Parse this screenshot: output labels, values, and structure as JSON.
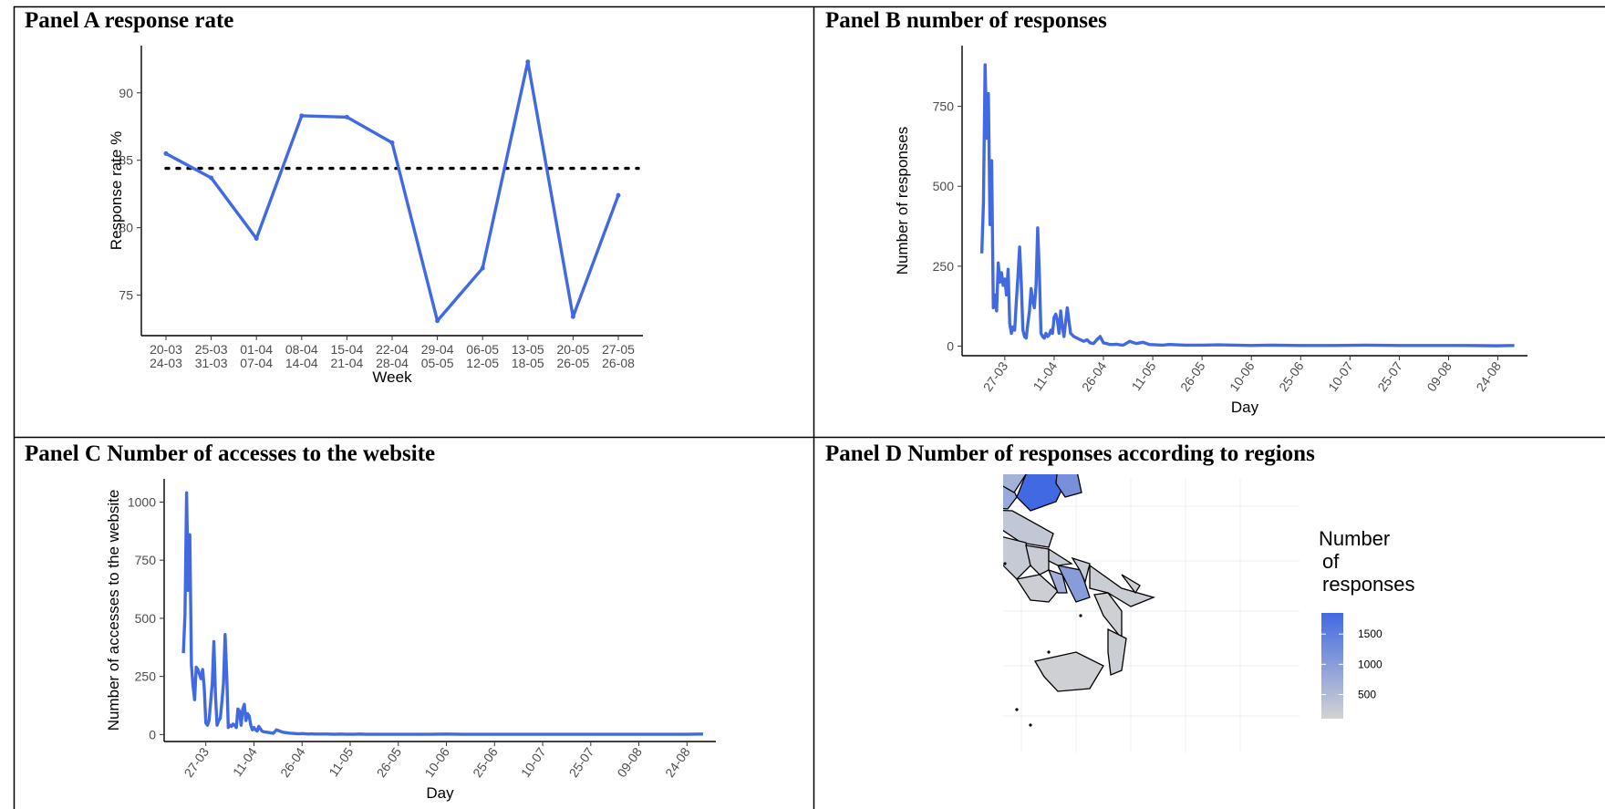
{
  "panels": {
    "a": {
      "title": "Panel A response rate"
    },
    "b": {
      "title": "Panel B number of responses"
    },
    "c": {
      "title": "Panel C Number of accesses to the website"
    },
    "d": {
      "title": "Panel D Number of responses according to regions"
    }
  },
  "colors": {
    "series": "#4169e1",
    "low": "#d3d3d3",
    "high": "#4169e1"
  },
  "chart_data": [
    {
      "id": "a",
      "type": "line",
      "xlabel": "Week",
      "ylabel": "Response rate %",
      "categories": [
        [
          "20-03",
          "24-03"
        ],
        [
          "25-03",
          "31-03"
        ],
        [
          "01-04",
          "07-04"
        ],
        [
          "08-04",
          "14-04"
        ],
        [
          "15-04",
          "21-04"
        ],
        [
          "22-04",
          "28-04"
        ],
        [
          "29-04",
          "05-05"
        ],
        [
          "06-05",
          "12-05"
        ],
        [
          "13-05",
          "18-05"
        ],
        [
          "20-05",
          "26-05"
        ],
        [
          "27-05",
          "26-08"
        ]
      ],
      "values": [
        85.5,
        83.7,
        79.2,
        88.3,
        88.2,
        86.3,
        73.1,
        77.0,
        92.3,
        73.4,
        82.4
      ],
      "reference_line": 84.4,
      "ylim": [
        72,
        93.5
      ],
      "yticks": [
        75,
        80,
        85,
        90
      ],
      "grid": false
    },
    {
      "id": "b",
      "type": "line",
      "xlabel": "Day",
      "ylabel": "Number of responses",
      "xticks": [
        "27-03",
        "11-04",
        "26-04",
        "11-05",
        "26-05",
        "10-06",
        "25-06",
        "10-07",
        "25-07",
        "09-08",
        "24-08"
      ],
      "x": [
        -7,
        -6.5,
        -6,
        -5.5,
        -5,
        -4.5,
        -4,
        -3.5,
        -3,
        -2.5,
        -2,
        -1.5,
        -1,
        -0.5,
        0,
        0.5,
        1,
        1.5,
        2,
        2.5,
        3,
        3.5,
        4,
        4.5,
        5,
        5.5,
        6,
        6.5,
        7,
        7.5,
        8,
        8.5,
        9,
        9.5,
        10,
        10.5,
        11,
        11.5,
        12,
        12.5,
        13,
        13.5,
        14,
        14.5,
        15,
        15.5,
        16,
        16.5,
        17,
        17.5,
        18,
        19,
        20,
        21,
        22,
        23,
        24,
        25,
        26,
        27,
        28,
        29,
        30,
        31,
        32,
        33,
        34,
        35,
        36,
        38,
        40,
        42,
        44,
        46,
        48,
        50,
        55,
        60,
        65,
        70,
        75,
        80,
        90,
        100,
        110,
        120,
        130,
        140,
        150,
        155
      ],
      "y": [
        290,
        450,
        880,
        650,
        790,
        380,
        580,
        120,
        160,
        110,
        260,
        200,
        230,
        190,
        210,
        160,
        240,
        70,
        40,
        60,
        50,
        140,
        220,
        310,
        200,
        50,
        30,
        25,
        70,
        110,
        180,
        140,
        120,
        190,
        370,
        230,
        40,
        30,
        25,
        40,
        30,
        35,
        50,
        40,
        90,
        100,
        80,
        40,
        110,
        60,
        30,
        120,
        40,
        30,
        25,
        20,
        15,
        20,
        10,
        8,
        20,
        30,
        10,
        8,
        5,
        5,
        6,
        4,
        3,
        15,
        8,
        12,
        5,
        4,
        3,
        5,
        3,
        3,
        4,
        3,
        2,
        3,
        2,
        2,
        3,
        2,
        2,
        2,
        1,
        2
      ],
      "ylim": [
        -30,
        940
      ],
      "yticks": [
        0,
        250,
        500,
        750
      ],
      "grid": false
    },
    {
      "id": "c",
      "type": "line",
      "xlabel": "Day",
      "ylabel": "Number of accesses to the website",
      "xticks": [
        "27-03",
        "11-04",
        "26-04",
        "11-05",
        "26-05",
        "10-06",
        "25-06",
        "10-07",
        "25-07",
        "09-08",
        "24-08"
      ],
      "x": [
        -7,
        -6.5,
        -6,
        -5.5,
        -5,
        -4.5,
        -4,
        -3.5,
        -3,
        -2.5,
        -2,
        -1.5,
        -1,
        -0.5,
        0,
        0.5,
        1,
        1.5,
        2,
        2.5,
        3,
        3.5,
        4,
        4.5,
        5,
        5.5,
        6,
        6.5,
        7,
        7.5,
        8,
        8.5,
        9,
        9.5,
        10,
        10.5,
        11,
        11.5,
        12,
        12.5,
        13,
        13.5,
        14,
        14.5,
        15,
        15.5,
        16,
        16.5,
        17,
        17.5,
        18,
        19,
        20,
        21,
        22,
        23,
        24,
        25,
        26,
        27,
        28,
        29,
        30,
        31,
        32,
        33,
        34,
        35,
        36,
        38,
        40,
        42,
        44,
        46,
        48,
        50,
        55,
        60,
        65,
        70,
        75,
        80,
        90,
        100,
        110,
        120,
        130,
        140,
        150,
        155
      ],
      "y": [
        350,
        520,
        1040,
        620,
        860,
        300,
        210,
        150,
        290,
        280,
        260,
        240,
        280,
        200,
        50,
        40,
        60,
        140,
        220,
        400,
        170,
        40,
        60,
        70,
        140,
        220,
        430,
        260,
        30,
        40,
        35,
        45,
        40,
        30,
        110,
        100,
        40,
        110,
        130,
        60,
        90,
        80,
        40,
        20,
        30,
        20,
        15,
        35,
        25,
        15,
        12,
        10,
        8,
        5,
        20,
        15,
        10,
        8,
        6,
        5,
        4,
        3,
        4,
        3,
        2,
        3,
        2,
        2,
        2,
        2,
        1,
        2,
        1,
        1,
        2,
        1,
        1,
        1,
        1,
        1,
        2,
        1,
        1,
        1,
        1,
        1,
        1,
        1,
        1,
        2
      ],
      "ylim": [
        -30,
        1100
      ],
      "yticks": [
        0,
        250,
        500,
        750,
        1000
      ],
      "grid": false
    },
    {
      "id": "d",
      "type": "heatmap",
      "legend_title": [
        "Number",
        "of",
        "responses"
      ],
      "legend_ticks": [
        500,
        1000,
        1500
      ],
      "legend_range": [
        100,
        1850
      ],
      "legend_placement": "right",
      "regions": [
        {
          "value": 1850
        },
        {
          "value": 1200
        },
        {
          "value": 800
        },
        {
          "value": 700
        },
        {
          "value": 650
        },
        {
          "value": 1000
        },
        {
          "value": 300
        },
        {
          "value": 200
        },
        {
          "value": 250
        },
        {
          "value": 220
        },
        {
          "value": 180
        },
        {
          "value": 260
        },
        {
          "value": 240
        },
        {
          "value": 700
        },
        {
          "value": 200
        },
        {
          "value": 150
        },
        {
          "value": 200
        },
        {
          "value": 150
        },
        {
          "value": 220
        },
        {
          "value": 150
        }
      ],
      "grid": true
    }
  ]
}
